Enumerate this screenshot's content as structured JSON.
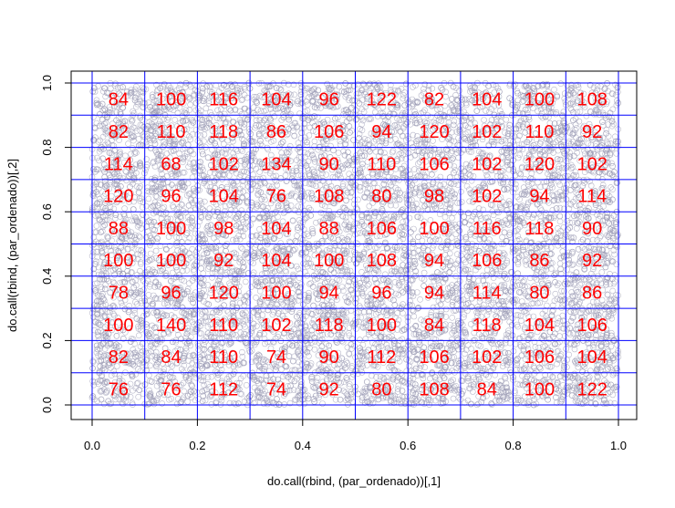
{
  "chart_data": {
    "type": "scatter",
    "title": "",
    "xlabel": "do.call(rbind, (par_ordenado))[,1]",
    "ylabel": "do.call(rbind, (par_ordenado))[,2]",
    "xlim": [
      0,
      1
    ],
    "ylim": [
      0,
      1
    ],
    "x_ticks": [
      "0.0",
      "0.2",
      "0.4",
      "0.6",
      "0.8",
      "1.0"
    ],
    "y_ticks": [
      "0.0",
      "0.2",
      "0.4",
      "0.6",
      "0.8",
      "1.0"
    ],
    "grid_breaks": [
      0,
      0.1,
      0.2,
      0.3,
      0.4,
      0.5,
      0.6,
      0.7,
      0.8,
      0.9,
      1.0
    ],
    "point_count": 10000,
    "point_color": "#a0a0b8",
    "grid_color": "#0000ff",
    "label_color": "#ff0000",
    "cell_counts": [
      [
        84,
        100,
        116,
        104,
        96,
        122,
        82,
        104,
        100,
        108
      ],
      [
        82,
        110,
        118,
        86,
        106,
        94,
        120,
        102,
        110,
        92
      ],
      [
        114,
        68,
        102,
        134,
        90,
        110,
        106,
        102,
        120,
        102
      ],
      [
        120,
        96,
        104,
        76,
        108,
        80,
        98,
        102,
        94,
        114
      ],
      [
        88,
        100,
        98,
        104,
        88,
        106,
        100,
        116,
        118,
        90
      ],
      [
        100,
        100,
        92,
        104,
        100,
        108,
        94,
        106,
        86,
        92
      ],
      [
        78,
        96,
        120,
        100,
        94,
        96,
        94,
        114,
        80,
        86
      ],
      [
        100,
        140,
        110,
        102,
        118,
        100,
        84,
        118,
        104,
        106
      ],
      [
        82,
        84,
        110,
        74,
        90,
        112,
        106,
        102,
        106,
        104
      ],
      [
        76,
        76,
        112,
        74,
        92,
        80,
        108,
        84,
        100,
        122
      ]
    ]
  }
}
